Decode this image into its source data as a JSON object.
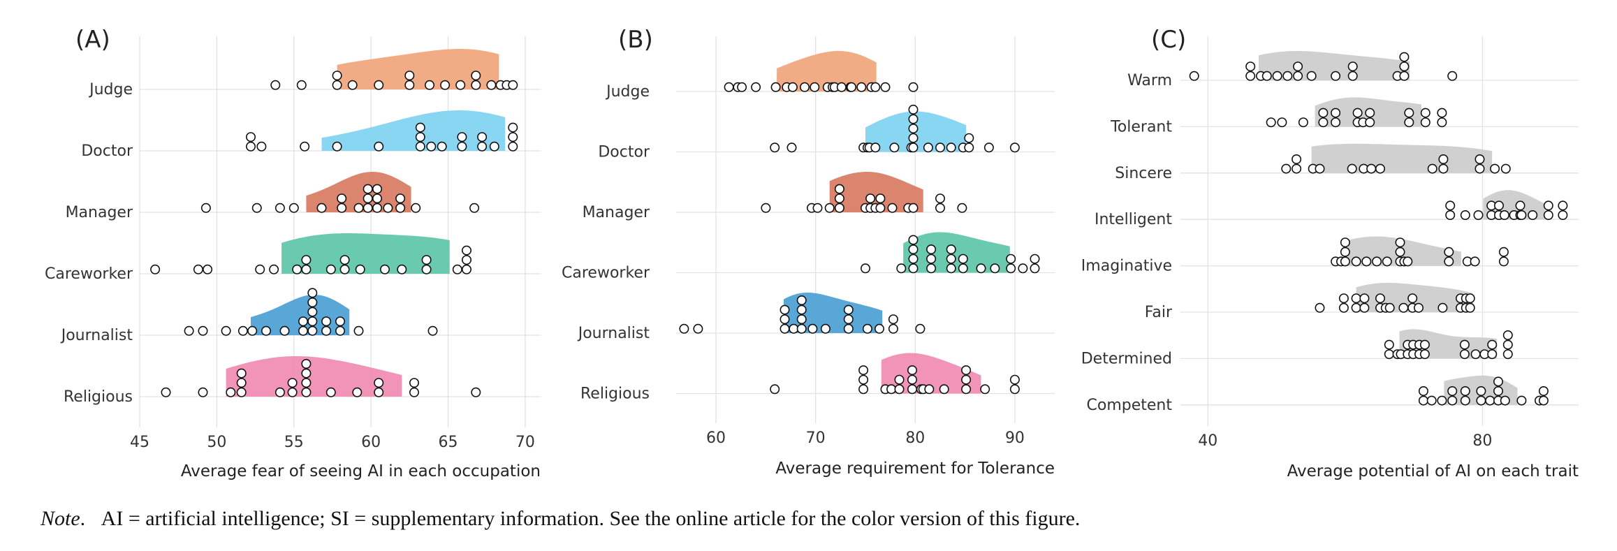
{
  "chart_data": [
    {
      "type": "raincloud",
      "panel": "(A)",
      "xlabel": "Average fear of seeing AI in each occupation",
      "xlim": [
        45,
        71
      ],
      "xticks": [
        45,
        50,
        55,
        60,
        65,
        70
      ],
      "categories": [
        "Judge",
        "Doctor",
        "Manager",
        "Careworker",
        "Journalist",
        "Religious"
      ],
      "series": [
        {
          "category": "Judge",
          "color": "#f0a57c",
          "points": [
            53.8,
            55.5,
            57.8,
            57.8,
            58.8,
            60.5,
            62.5,
            62.5,
            63.8,
            64.8,
            65.8,
            66.8,
            66.8,
            67.8,
            68.4,
            68.8,
            69.2
          ]
        },
        {
          "category": "Doctor",
          "color": "#7fd3f2",
          "points": [
            52.2,
            52.2,
            52.9,
            55.7,
            57.8,
            60.5,
            63.2,
            63.2,
            63.2,
            63.9,
            64.6,
            65.9,
            65.9,
            67.2,
            67.2,
            68.0,
            69.2,
            69.2,
            69.2
          ]
        },
        {
          "category": "Manager",
          "color": "#d97b62",
          "points": [
            49.3,
            52.6,
            54.1,
            55.0,
            56.8,
            58.1,
            58.1,
            59.2,
            59.8,
            59.8,
            59.8,
            60.4,
            60.4,
            60.4,
            61.1,
            61.9,
            61.9,
            62.9,
            66.7
          ]
        },
        {
          "category": "Careworker",
          "color": "#5cc5a8",
          "points": [
            46.0,
            48.8,
            49.4,
            52.8,
            53.7,
            55.2,
            55.8,
            55.8,
            57.4,
            58.3,
            58.3,
            59.3,
            60.9,
            62.0,
            63.6,
            63.6,
            65.6,
            66.2,
            66.2,
            66.2
          ]
        },
        {
          "category": "Journalist",
          "color": "#4a9fd4",
          "points": [
            48.2,
            49.1,
            50.6,
            51.7,
            52.3,
            53.2,
            54.4,
            55.6,
            55.6,
            56.2,
            56.2,
            56.2,
            56.2,
            56.2,
            57.1,
            57.1,
            58.0,
            58.0,
            59.2,
            64.0
          ]
        },
        {
          "category": "Religious",
          "color": "#f08bb2",
          "points": [
            46.7,
            49.1,
            50.9,
            51.6,
            51.6,
            51.6,
            54.1,
            54.9,
            54.9,
            55.8,
            55.8,
            55.8,
            55.8,
            57.4,
            59.1,
            60.5,
            60.5,
            62.8,
            62.8,
            66.8
          ]
        }
      ]
    },
    {
      "type": "raincloud",
      "panel": "(B)",
      "xlabel": "Average requirement for Tolerance",
      "xlim": [
        56,
        94
      ],
      "xticks": [
        60,
        70,
        80,
        90
      ],
      "categories": [
        "Judge",
        "Doctor",
        "Manager",
        "Careworker",
        "Journalist",
        "Religious"
      ],
      "series": [
        {
          "category": "Judge",
          "color": "#f0a57c",
          "points": [
            61.3,
            62.2,
            62.6,
            64.0,
            66.0,
            67.1,
            67.7,
            68.9,
            69.9,
            71.2,
            71.7,
            71.9,
            72.6,
            73.5,
            73.6,
            74.6,
            75.6,
            76.0,
            77.0,
            79.8
          ]
        },
        {
          "category": "Doctor",
          "color": "#7fd3f2",
          "points": [
            65.9,
            67.6,
            74.8,
            75.2,
            75.4,
            76.0,
            77.9,
            79.6,
            79.8,
            79.8,
            79.8,
            79.8,
            79.8,
            81.3,
            82.5,
            83.6,
            84.8,
            85.4,
            85.4,
            87.4,
            90.0
          ]
        },
        {
          "category": "Manager",
          "color": "#d97b62",
          "points": [
            65.0,
            69.6,
            70.2,
            71.4,
            72.4,
            72.4,
            72.4,
            75.0,
            75.5,
            75.5,
            76.0,
            76.5,
            76.5,
            77.7,
            79.3,
            79.8,
            82.5,
            82.5,
            84.7
          ]
        },
        {
          "category": "Careworker",
          "color": "#5cc5a8",
          "points": [
            75.0,
            78.6,
            79.8,
            79.8,
            79.8,
            79.8,
            81.6,
            81.6,
            81.6,
            83.6,
            83.6,
            83.6,
            84.8,
            84.8,
            86.6,
            88.0,
            89.6,
            89.6,
            90.8,
            92.0,
            92.0
          ]
        },
        {
          "category": "Journalist",
          "color": "#4a9fd4",
          "points": [
            56.8,
            58.2,
            66.9,
            66.9,
            66.9,
            67.8,
            68.6,
            68.6,
            68.6,
            68.6,
            69.7,
            71.0,
            73.3,
            73.3,
            73.3,
            75.2,
            76.4,
            77.8,
            77.8,
            80.5
          ]
        },
        {
          "category": "Religious",
          "color": "#f08bb2",
          "points": [
            65.9,
            74.8,
            74.8,
            74.8,
            77.0,
            77.6,
            78.4,
            78.4,
            79.7,
            79.7,
            79.7,
            80.6,
            80.8,
            81.4,
            82.9,
            85.1,
            85.1,
            85.1,
            87.0,
            90.0,
            90.0
          ]
        }
      ]
    },
    {
      "type": "raincloud",
      "panel": "(C)",
      "xlabel": "Average potential of AI on each trait",
      "xlim": [
        36,
        94
      ],
      "xticks": [
        40,
        80
      ],
      "categories": [
        "Warm",
        "Tolerant",
        "Sincere",
        "Intelligent",
        "Imaginative",
        "Fair",
        "Determined",
        "Competent"
      ],
      "series": [
        {
          "category": "Warm",
          "color": "#cccccc",
          "points": [
            38.0,
            46.2,
            46.2,
            47.7,
            48.6,
            50.1,
            51.6,
            53.1,
            53.1,
            55.1,
            58.6,
            61.1,
            61.1,
            67.6,
            68.6,
            68.6,
            68.6,
            75.6
          ]
        },
        {
          "category": "Tolerant",
          "color": "#cccccc",
          "points": [
            49.2,
            50.8,
            53.9,
            56.8,
            56.8,
            58.6,
            58.6,
            61.8,
            61.8,
            62.6,
            63.6,
            63.6,
            69.3,
            69.3,
            71.7,
            71.7,
            74.1,
            74.1
          ]
        },
        {
          "category": "Sincere",
          "color": "#cccccc",
          "points": [
            51.4,
            52.9,
            52.9,
            55.3,
            56.3,
            61.0,
            62.7,
            63.8,
            65.1,
            72.7,
            74.3,
            74.3,
            79.6,
            79.6,
            81.8,
            83.4
          ]
        },
        {
          "category": "Intelligent",
          "color": "#cccccc",
          "points": [
            75.3,
            75.3,
            77.5,
            79.4,
            81.3,
            81.3,
            82.4,
            82.4,
            83.2,
            84.6,
            85.5,
            85.5,
            85.7,
            87.3,
            89.6,
            89.6,
            91.7,
            91.7
          ]
        },
        {
          "category": "Imaginative",
          "color": "#cccccc",
          "points": [
            58.6,
            59.4,
            60.0,
            60.0,
            60.0,
            61.6,
            63.1,
            64.6,
            66.1,
            68.0,
            68.0,
            68.0,
            68.6,
            69.1,
            75.1,
            75.1,
            77.8,
            78.9,
            83.1,
            83.1
          ]
        },
        {
          "category": "Fair",
          "color": "#cccccc",
          "points": [
            56.3,
            59.8,
            59.8,
            61.6,
            61.6,
            62.8,
            62.8,
            65.1,
            65.1,
            65.9,
            66.5,
            68.5,
            69.8,
            69.8,
            70.7,
            74.2,
            76.8,
            76.8,
            77.6,
            77.6,
            78.2,
            78.2
          ]
        },
        {
          "category": "Determined",
          "color": "#cccccc",
          "points": [
            66.4,
            66.4,
            67.6,
            68.1,
            69.1,
            69.1,
            69.9,
            69.9,
            70.8,
            70.8,
            71.6,
            71.6,
            77.4,
            77.4,
            79.0,
            80.3,
            81.4,
            81.4,
            83.7,
            83.7,
            83.7
          ]
        },
        {
          "category": "Competent",
          "color": "#cccccc",
          "points": [
            71.4,
            71.4,
            72.6,
            74.1,
            75.6,
            75.6,
            77.5,
            77.5,
            79.8,
            79.8,
            81.1,
            82.3,
            82.3,
            82.3,
            83.3,
            85.7,
            88.3,
            88.9,
            88.9
          ]
        }
      ]
    }
  ],
  "note": {
    "label": "Note",
    "text": "AI = artificial intelligence; SI = supplementary information. See the online article for the color version of this figure."
  }
}
